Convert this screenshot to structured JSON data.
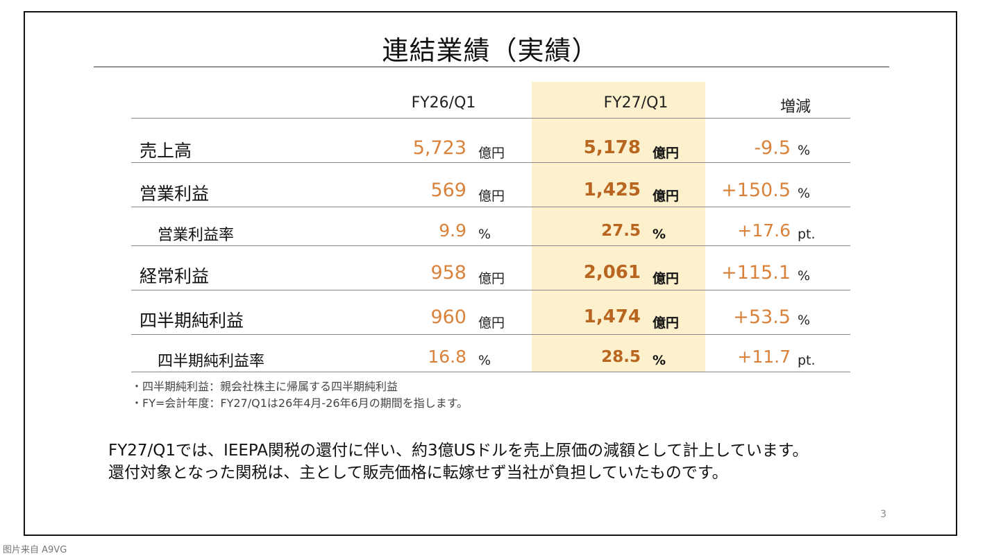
{
  "slide": {
    "title": "連結業績（実績）",
    "columns": [
      "FY26/Q1",
      "FY27/Q1",
      "増減"
    ],
    "rows": [
      {
        "label": "売上高",
        "prev": "5,723",
        "prev_unit": "億円",
        "curr": "5,178",
        "curr_unit": "億円",
        "diff": "-9.5",
        "diff_unit": "%"
      },
      {
        "label": "営業利益",
        "prev": "569",
        "prev_unit": "億円",
        "curr": "1,425",
        "curr_unit": "億円",
        "diff": "+150.5",
        "diff_unit": "%"
      },
      {
        "label": "営業利益率",
        "prev": "9.9",
        "prev_unit": "%",
        "curr": "27.5",
        "curr_unit": "%",
        "diff": "+17.6",
        "diff_unit": "pt."
      },
      {
        "label": "経常利益",
        "prev": "958",
        "prev_unit": "億円",
        "curr": "2,061",
        "curr_unit": "億円",
        "diff": "+115.1",
        "diff_unit": "%"
      },
      {
        "label": "四半期純利益",
        "prev": "960",
        "prev_unit": "億円",
        "curr": "1,474",
        "curr_unit": "億円",
        "diff": "+53.5",
        "diff_unit": "%"
      },
      {
        "label": "四半期純利益率",
        "prev": "16.8",
        "prev_unit": "%",
        "curr": "28.5",
        "curr_unit": "%",
        "diff": "+11.7",
        "diff_unit": "pt."
      }
    ],
    "notes": [
      "・四半期純利益：親会社株主に帰属する四半期純利益",
      "・FY=会計年度：FY27/Q1は26年4月-26年6月の期間を指します。"
    ],
    "body_lines": [
      "FY27/Q1では、IEEPA関税の還付に伴い、約3億USドルを売上原価の減額として計上しています。",
      "還付対象となった関税は、主として販売価格に転嫁せず当社が負担していたものです。"
    ],
    "page_number": "3",
    "colors": {
      "highlight": "#fdf1cd",
      "value_orange": "#d9823b",
      "value_bold": "#b8651f"
    }
  },
  "watermark": "图片来自 A9VG"
}
